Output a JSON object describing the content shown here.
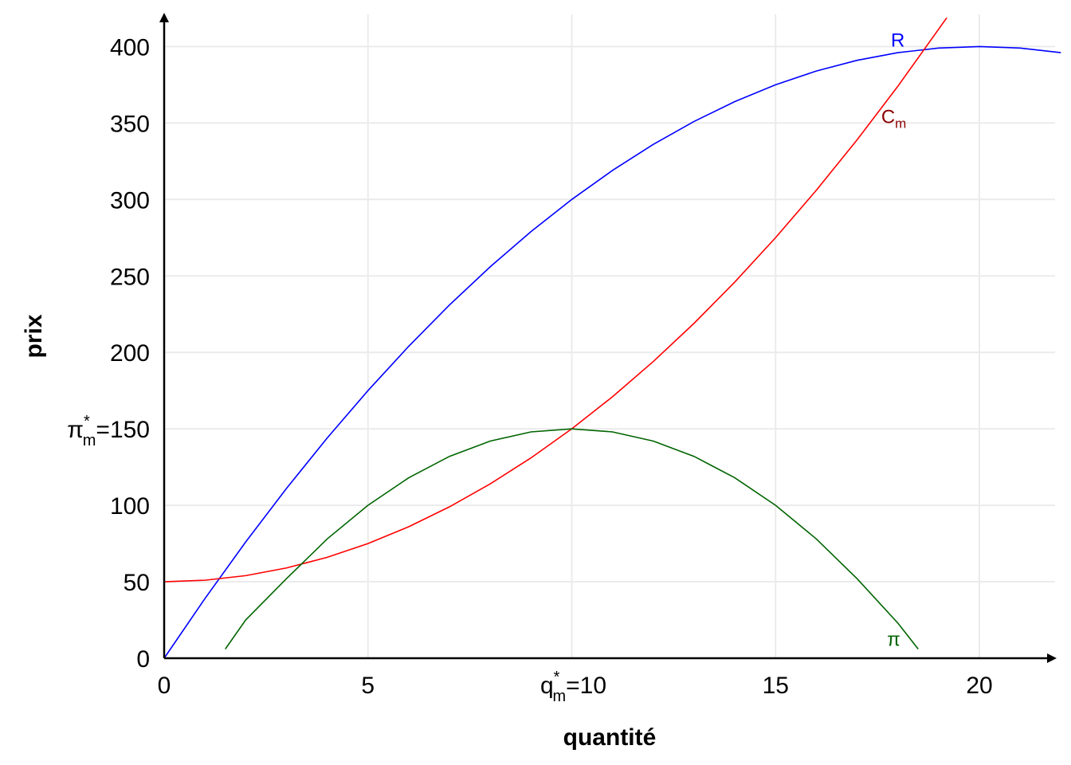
{
  "chart_data": {
    "type": "line",
    "xlabel": "quantité",
    "ylabel": "prix",
    "xlim": [
      0,
      22
    ],
    "ylim": [
      0,
      400
    ],
    "grid": true,
    "x_ticks": [
      {
        "value": 0,
        "label": "0"
      },
      {
        "value": 5,
        "label": "5"
      },
      {
        "value": 10,
        "label": "q*m=10",
        "base": "q",
        "sup": "*",
        "sub": "m",
        "rest": "=10"
      },
      {
        "value": 15,
        "label": "15"
      },
      {
        "value": 20,
        "label": "20"
      }
    ],
    "y_ticks": [
      {
        "value": 0,
        "label": "0"
      },
      {
        "value": 50,
        "label": "50"
      },
      {
        "value": 100,
        "label": "100"
      },
      {
        "value": 150,
        "label": "π*m=150",
        "base": "π",
        "sup": "*",
        "sub": "m",
        "rest": "=150"
      },
      {
        "value": 200,
        "label": "200"
      },
      {
        "value": 250,
        "label": "250"
      },
      {
        "value": 300,
        "label": "300"
      },
      {
        "value": 350,
        "label": "350"
      },
      {
        "value": 400,
        "label": "400"
      }
    ],
    "series": [
      {
        "name": "R",
        "label_base": "R",
        "color": "#0000ff",
        "label_color": "#0000ff",
        "label_at": {
          "x": 18.0,
          "y": 400
        },
        "x": [
          0,
          1,
          2,
          3,
          4,
          5,
          6,
          7,
          8,
          9,
          10,
          11,
          12,
          13,
          14,
          15,
          16,
          17,
          18,
          19,
          20,
          21,
          22
        ],
        "y": [
          0,
          39,
          76,
          111,
          144,
          175,
          204,
          231,
          256,
          279,
          300,
          319,
          336,
          351,
          364,
          375,
          384,
          391,
          396,
          399,
          400,
          399,
          396
        ]
      },
      {
        "name": "Cm",
        "label_base": "C",
        "label_sub": "m",
        "color": "#ff0000",
        "label_color": "#8b0000",
        "label_at": {
          "x": 17.9,
          "y": 350
        },
        "x": [
          0,
          1,
          2,
          3,
          4,
          5,
          6,
          7,
          8,
          9,
          10,
          11,
          12,
          13,
          14,
          15,
          16,
          17,
          18,
          19.2
        ],
        "y": [
          50,
          51,
          54,
          59,
          66,
          75,
          86,
          99,
          114,
          131,
          150,
          171,
          194,
          219,
          246,
          275,
          306,
          339,
          374,
          418.8
        ]
      },
      {
        "name": "π",
        "label_base": "π",
        "color": "#006400",
        "label_color": "#006400",
        "label_at": {
          "x": 17.9,
          "y": 8
        },
        "x": [
          1.5,
          2,
          3,
          4,
          5,
          6,
          7,
          8,
          9,
          10,
          11,
          12,
          13,
          14,
          15,
          16,
          17,
          18,
          18.5
        ],
        "y": [
          6,
          25,
          52,
          78,
          100,
          118,
          132,
          142,
          148,
          150,
          148,
          142,
          132,
          118,
          100,
          78,
          52,
          23,
          6
        ]
      }
    ]
  }
}
